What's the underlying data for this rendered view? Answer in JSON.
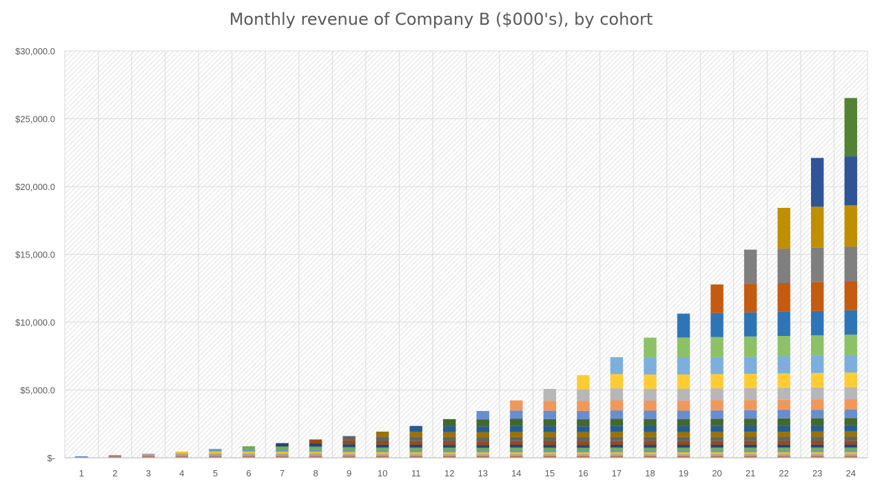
{
  "chart_data": {
    "type": "bar",
    "stacked": true,
    "title": "Monthly revenue of Company B ($000's), by cohort",
    "xlabel": "",
    "ylabel": "",
    "categories": [
      "1",
      "2",
      "3",
      "4",
      "5",
      "6",
      "7",
      "8",
      "9",
      "10",
      "11",
      "12",
      "13",
      "14",
      "15",
      "16",
      "17",
      "18",
      "19",
      "20",
      "21",
      "22",
      "23",
      "24"
    ],
    "totals": [
      100,
      200,
      300,
      450,
      650,
      850,
      1080,
      1350,
      1600,
      1930,
      2350,
      2850,
      3450,
      4230,
      5080,
      6100,
      7420,
      8860,
      10630,
      12780,
      15350,
      18430,
      22110,
      26530
    ],
    "ylim": [
      0,
      30000
    ],
    "yticks": [
      0,
      5000,
      10000,
      15000,
      20000,
      25000,
      30000
    ],
    "ytick_labels": [
      "$-",
      "$5,000.0",
      "$10,000.0",
      "$15,000.0",
      "$20,000.0",
      "$25,000.0",
      "$30,000.0"
    ],
    "grid": true,
    "legend": "none",
    "series_colors": [
      "#4472C4",
      "#ED7D31",
      "#A5A5A5",
      "#FFC000",
      "#5B9BD5",
      "#70AD47",
      "#264478",
      "#9E480E",
      "#636363",
      "#997300",
      "#255E91",
      "#43682B",
      "#698ED0",
      "#F1975A",
      "#B7B7B7",
      "#FFCD33",
      "#7CAFDD",
      "#8CC168",
      "#2E75B6",
      "#C55A11",
      "#7F7F7F",
      "#BF8F00",
      "#2F5597",
      "#548235"
    ]
  }
}
